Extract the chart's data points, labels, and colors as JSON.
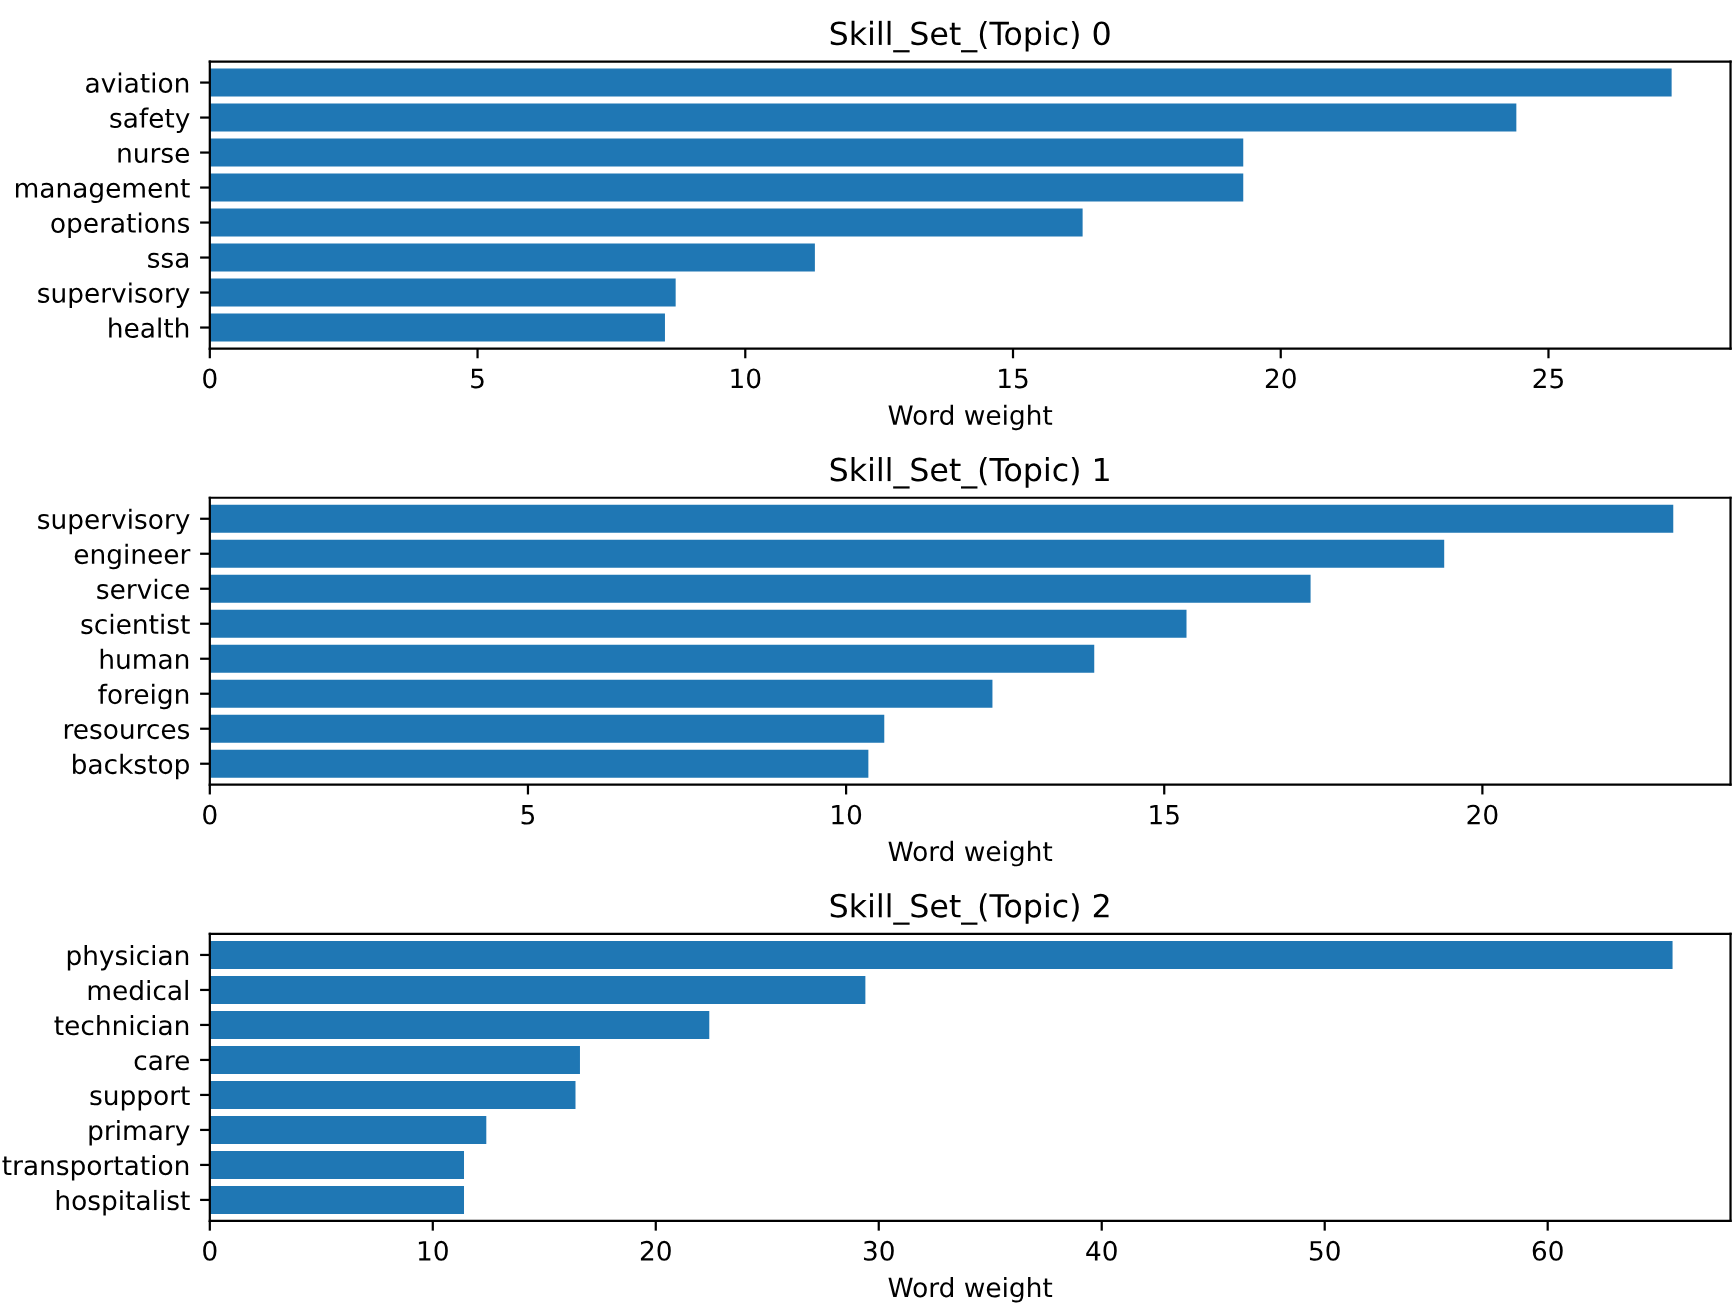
{
  "chart_data": [
    {
      "type": "bar",
      "orientation": "horizontal",
      "title": "Skill_Set_(Topic) 0",
      "xlabel": "Word weight",
      "categories": [
        "aviation",
        "safety",
        "nurse",
        "management",
        "operations",
        "ssa",
        "supervisory",
        "health"
      ],
      "values": [
        27.3,
        24.4,
        19.3,
        19.3,
        16.3,
        11.3,
        8.7,
        8.5
      ],
      "color": "#1f77b4",
      "xlim": [
        0,
        28.4
      ],
      "xticks": [
        0,
        5,
        10,
        15,
        20,
        25
      ],
      "grid": false,
      "legend": false
    },
    {
      "type": "bar",
      "orientation": "horizontal",
      "title": "Skill_Set_(Topic) 1",
      "xlabel": "Word weight",
      "categories": [
        "supervisory",
        "engineer",
        "service",
        "scientist",
        "human",
        "foreign",
        "resources",
        "backstop"
      ],
      "values": [
        23.0,
        19.4,
        17.3,
        15.35,
        13.9,
        12.3,
        10.6,
        10.35
      ],
      "color": "#1f77b4",
      "xlim": [
        0,
        23.9
      ],
      "xticks": [
        0,
        5,
        10,
        15,
        20
      ],
      "grid": false,
      "legend": false
    },
    {
      "type": "bar",
      "orientation": "horizontal",
      "title": "Skill_Set_(Topic) 2",
      "xlabel": "Word weight",
      "categories": [
        "physician",
        "medical",
        "technician",
        "care",
        "support",
        "primary",
        "transportation",
        "hospitalist"
      ],
      "values": [
        65.6,
        29.4,
        22.4,
        16.6,
        16.4,
        12.4,
        11.4,
        11.4
      ],
      "color": "#1f77b4",
      "xlim": [
        0,
        68.2
      ],
      "xticks": [
        0,
        10,
        20,
        30,
        40,
        50,
        60
      ],
      "grid": false,
      "legend": false
    }
  ]
}
